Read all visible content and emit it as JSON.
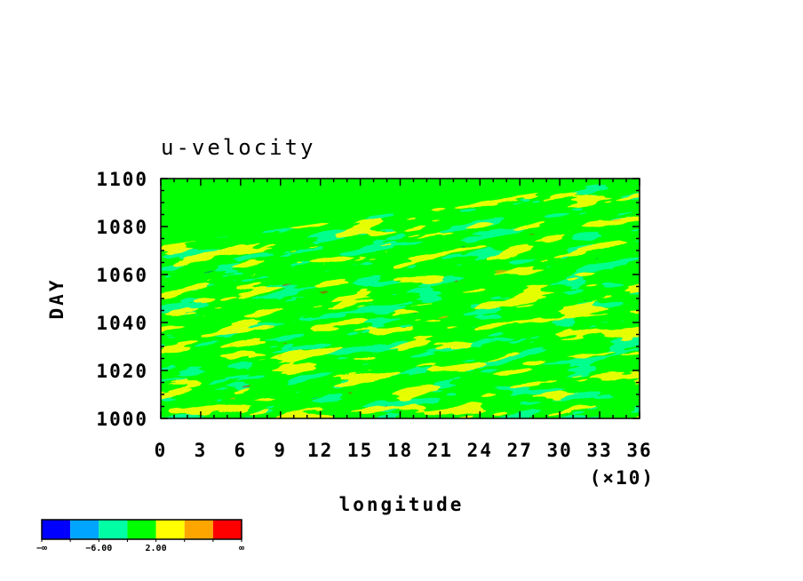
{
  "chart_data": {
    "type": "heatmap",
    "title": "u-velocity",
    "xlabel": "longitude",
    "x_multiplier": "(×10)",
    "ylabel": "DAY",
    "xlim": [
      0,
      36
    ],
    "ylim": [
      1000,
      1100
    ],
    "x_ticks": [
      "0",
      "3",
      "6",
      "9",
      "12",
      "15",
      "18",
      "21",
      "24",
      "27",
      "30",
      "33",
      "36"
    ],
    "y_ticks": [
      "1000",
      "1020",
      "1040",
      "1060",
      "1080",
      "1100"
    ],
    "colorbar": {
      "colors": [
        "#0000ff",
        "#00a5ff",
        "#00ffa5",
        "#00ff00",
        "#ffff00",
        "#ffa500",
        "#ff0000"
      ],
      "labels": [
        "−∞",
        "−6.00",
        "2.00",
        "∞"
      ]
    }
  }
}
